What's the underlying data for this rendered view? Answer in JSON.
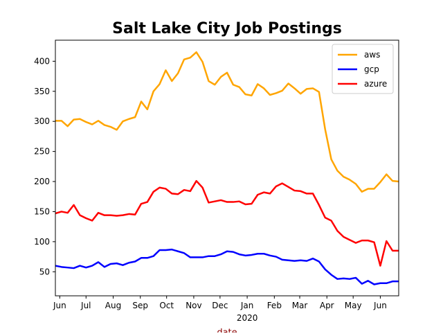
{
  "chart_data": {
    "type": "line",
    "title": "Salt Lake City Job Postings",
    "xlabel": "date",
    "ylabel": "",
    "legend_position": "top-right",
    "grid": false,
    "ylim": [
      10,
      435
    ],
    "xlim": [
      "2019-05-27",
      "2020-06-22"
    ],
    "x_ticks": [
      {
        "date": "2019-06-01",
        "label": "Jun"
      },
      {
        "date": "2019-07-01",
        "label": "Jul"
      },
      {
        "date": "2019-08-01",
        "label": "Aug"
      },
      {
        "date": "2019-09-01",
        "label": "Sep"
      },
      {
        "date": "2019-10-01",
        "label": "Oct"
      },
      {
        "date": "2019-11-01",
        "label": "Nov"
      },
      {
        "date": "2019-12-01",
        "label": "Dec"
      },
      {
        "date": "2020-01-01",
        "label": "Jan"
      },
      {
        "date": "2020-02-01",
        "label": "Feb"
      },
      {
        "date": "2020-03-01",
        "label": "Mar"
      },
      {
        "date": "2020-04-01",
        "label": "Apr"
      },
      {
        "date": "2020-05-01",
        "label": "May"
      },
      {
        "date": "2020-06-01",
        "label": "Jun"
      }
    ],
    "x_year_label": {
      "date": "2020-01-01",
      "label": "2020"
    },
    "y_ticks": [
      50,
      100,
      150,
      200,
      250,
      300,
      350,
      400
    ],
    "x": [
      "2019-05-27",
      "2019-06-03",
      "2019-06-10",
      "2019-06-17",
      "2019-06-24",
      "2019-07-01",
      "2019-07-08",
      "2019-07-15",
      "2019-07-22",
      "2019-07-29",
      "2019-08-05",
      "2019-08-12",
      "2019-08-19",
      "2019-08-26",
      "2019-09-02",
      "2019-09-09",
      "2019-09-16",
      "2019-09-23",
      "2019-09-30",
      "2019-10-07",
      "2019-10-14",
      "2019-10-21",
      "2019-10-28",
      "2019-11-04",
      "2019-11-11",
      "2019-11-18",
      "2019-11-25",
      "2019-12-02",
      "2019-12-09",
      "2019-12-16",
      "2019-12-23",
      "2019-12-30",
      "2020-01-06",
      "2020-01-13",
      "2020-01-20",
      "2020-01-27",
      "2020-02-03",
      "2020-02-10",
      "2020-02-17",
      "2020-02-24",
      "2020-03-02",
      "2020-03-09",
      "2020-03-16",
      "2020-03-23",
      "2020-03-30",
      "2020-04-06",
      "2020-04-13",
      "2020-04-20",
      "2020-04-27",
      "2020-05-04",
      "2020-05-11",
      "2020-05-18",
      "2020-05-25",
      "2020-06-01",
      "2020-06-08",
      "2020-06-15",
      "2020-06-22"
    ],
    "series": [
      {
        "name": "aws",
        "color": "#ffa500",
        "values": [
          301,
          301,
          292,
          303,
          304,
          299,
          295,
          301,
          294,
          291,
          286,
          300,
          304,
          307,
          333,
          320,
          350,
          362,
          385,
          367,
          380,
          403,
          406,
          415,
          399,
          367,
          361,
          374,
          381,
          361,
          357,
          345,
          343,
          362,
          355,
          344,
          347,
          351,
          363,
          355,
          346,
          354,
          355,
          349,
          287,
          237,
          218,
          208,
          203,
          196,
          183,
          188,
          188,
          199,
          212,
          201,
          200
        ]
      },
      {
        "name": "gcp",
        "color": "#0000ff",
        "values": [
          60,
          58,
          57,
          56,
          60,
          57,
          60,
          66,
          58,
          63,
          64,
          61,
          65,
          67,
          73,
          73,
          76,
          86,
          86,
          87,
          84,
          81,
          74,
          74,
          74,
          76,
          76,
          79,
          84,
          83,
          79,
          77,
          78,
          80,
          80,
          77,
          75,
          70,
          69,
          68,
          69,
          68,
          72,
          67,
          54,
          45,
          38,
          39,
          38,
          40,
          30,
          35,
          29,
          31,
          31,
          34,
          34
        ]
      },
      {
        "name": "azure",
        "color": "#ff0000",
        "values": [
          147,
          150,
          148,
          161,
          144,
          139,
          135,
          148,
          144,
          144,
          143,
          144,
          146,
          145,
          163,
          166,
          183,
          190,
          188,
          180,
          179,
          186,
          184,
          201,
          190,
          165,
          167,
          169,
          166,
          166,
          167,
          162,
          163,
          178,
          182,
          180,
          192,
          197,
          191,
          185,
          184,
          180,
          180,
          161,
          140,
          135,
          118,
          108,
          103,
          98,
          102,
          102,
          99,
          60,
          101,
          85,
          85
        ]
      }
    ]
  }
}
